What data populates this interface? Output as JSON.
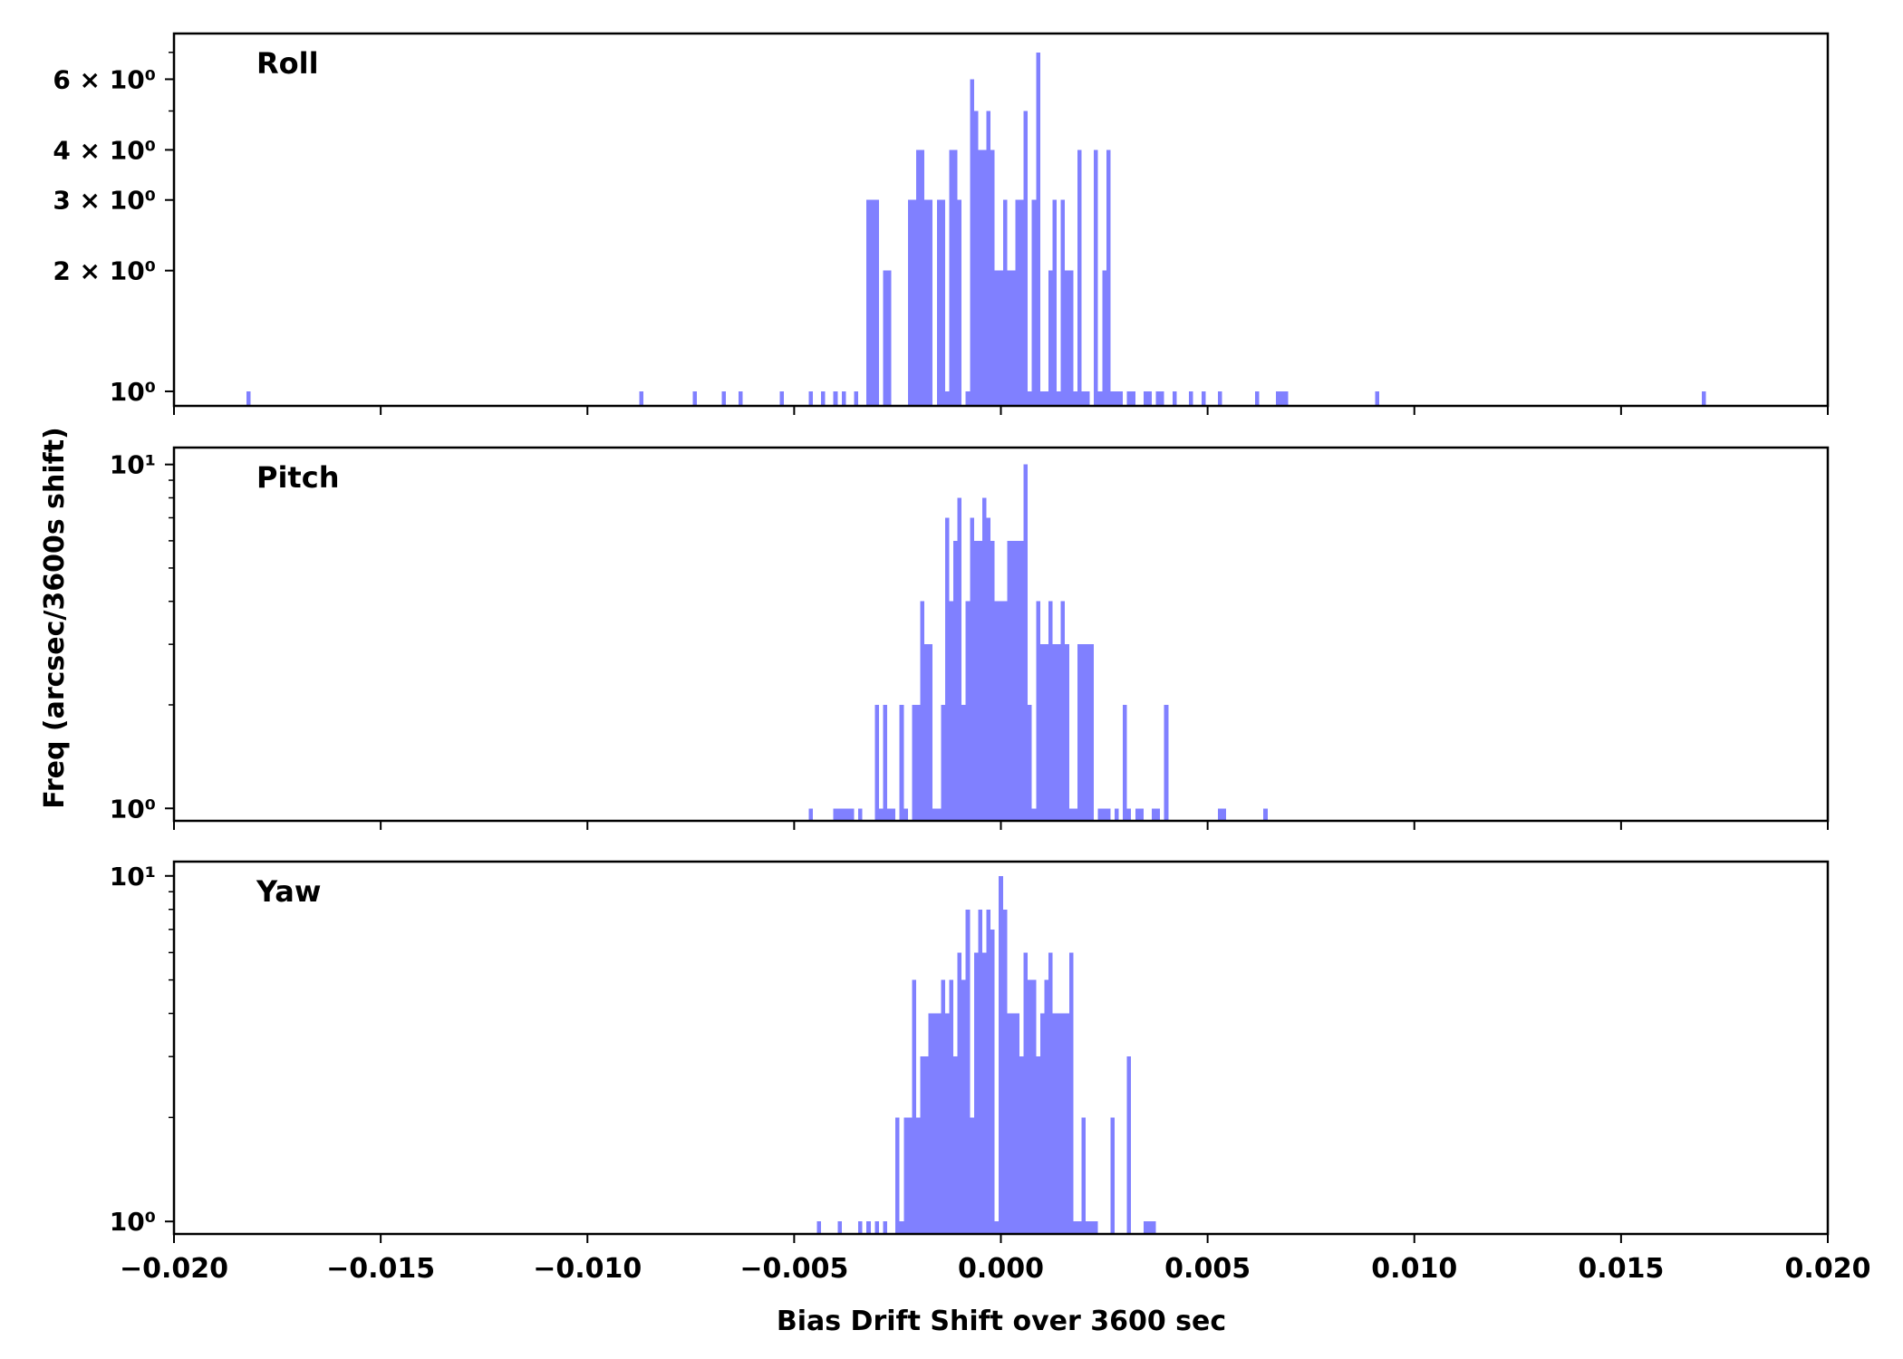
{
  "chart_data": [
    {
      "type": "bar",
      "title": "Roll",
      "xlim": [
        -0.02,
        0.02
      ],
      "y_scale": "log",
      "bar_color": "#8080ff",
      "y_ticks": [
        {
          "value": 1,
          "label": "10⁰"
        },
        {
          "value": 2,
          "label": "2 × 10⁰"
        },
        {
          "value": 3,
          "label": "3 × 10⁰"
        },
        {
          "value": 4,
          "label": "4 × 10⁰"
        },
        {
          "value": 6,
          "label": "6 × 10⁰"
        }
      ],
      "x_tick_labels_shown": false,
      "bins": [
        [
          -0.0182,
          1
        ],
        [
          -0.0087,
          1
        ],
        [
          -0.0074,
          1
        ],
        [
          -0.0067,
          1
        ],
        [
          -0.0063,
          1
        ],
        [
          -0.0053,
          1
        ],
        [
          -0.0046,
          1
        ],
        [
          -0.0043,
          1
        ],
        [
          -0.004,
          1
        ],
        [
          -0.0038,
          1
        ],
        [
          -0.0035,
          1
        ],
        [
          -0.0032,
          3
        ],
        [
          -0.0031,
          3
        ],
        [
          -0.003,
          3
        ],
        [
          -0.0028,
          2
        ],
        [
          -0.0027,
          2
        ],
        [
          -0.0022,
          3
        ],
        [
          -0.0021,
          3
        ],
        [
          -0.002,
          4
        ],
        [
          -0.0019,
          4
        ],
        [
          -0.0018,
          3
        ],
        [
          -0.0017,
          3
        ],
        [
          -0.0015,
          3
        ],
        [
          -0.0014,
          3
        ],
        [
          -0.0013,
          1
        ],
        [
          -0.0012,
          4
        ],
        [
          -0.0011,
          4
        ],
        [
          -0.001,
          3
        ],
        [
          -0.0008,
          1
        ],
        [
          -0.0007,
          6
        ],
        [
          -0.0006,
          5
        ],
        [
          -0.0005,
          4
        ],
        [
          -0.0004,
          4
        ],
        [
          -0.0003,
          5
        ],
        [
          -0.0002,
          4
        ],
        [
          -0.0001,
          2
        ],
        [
          0.0,
          2
        ],
        [
          0.0001,
          3
        ],
        [
          0.0002,
          2
        ],
        [
          0.0003,
          2
        ],
        [
          0.0004,
          3
        ],
        [
          0.0005,
          3
        ],
        [
          0.0006,
          5
        ],
        [
          0.0007,
          1
        ],
        [
          0.0008,
          3
        ],
        [
          0.0009,
          7
        ],
        [
          0.001,
          1
        ],
        [
          0.0011,
          1
        ],
        [
          0.0012,
          2
        ],
        [
          0.0013,
          3
        ],
        [
          0.0014,
          1
        ],
        [
          0.0015,
          3
        ],
        [
          0.0016,
          2
        ],
        [
          0.0017,
          2
        ],
        [
          0.0018,
          1
        ],
        [
          0.0019,
          4
        ],
        [
          0.002,
          1
        ],
        [
          0.0021,
          1
        ],
        [
          0.0023,
          4
        ],
        [
          0.0024,
          1
        ],
        [
          0.0025,
          2
        ],
        [
          0.0026,
          4
        ],
        [
          0.0027,
          1
        ],
        [
          0.0028,
          1
        ],
        [
          0.0029,
          1
        ],
        [
          0.0031,
          1
        ],
        [
          0.0032,
          1
        ],
        [
          0.0035,
          1
        ],
        [
          0.0036,
          1
        ],
        [
          0.0038,
          1
        ],
        [
          0.0039,
          1
        ],
        [
          0.0042,
          1
        ],
        [
          0.0046,
          1
        ],
        [
          0.0049,
          1
        ],
        [
          0.0053,
          1
        ],
        [
          0.0062,
          1
        ],
        [
          0.0067,
          1
        ],
        [
          0.0068,
          1
        ],
        [
          0.0069,
          1
        ],
        [
          0.0091,
          1
        ],
        [
          0.017,
          1
        ]
      ]
    },
    {
      "type": "bar",
      "title": "Pitch",
      "xlim": [
        -0.02,
        0.02
      ],
      "y_scale": "log",
      "bar_color": "#8080ff",
      "y_ticks": [
        {
          "value": 1,
          "label": "10⁰"
        },
        {
          "value": 10,
          "label": "10¹"
        }
      ],
      "x_tick_labels_shown": false,
      "bins": [
        [
          -0.0046,
          1
        ],
        [
          -0.004,
          1
        ],
        [
          -0.0039,
          1
        ],
        [
          -0.0038,
          1
        ],
        [
          -0.0037,
          1
        ],
        [
          -0.0036,
          1
        ],
        [
          -0.0034,
          1
        ],
        [
          -0.003,
          2
        ],
        [
          -0.0029,
          1
        ],
        [
          -0.0028,
          2
        ],
        [
          -0.0027,
          1
        ],
        [
          -0.0026,
          1
        ],
        [
          -0.0024,
          2
        ],
        [
          -0.0023,
          1
        ],
        [
          -0.0021,
          2
        ],
        [
          -0.002,
          2
        ],
        [
          -0.0019,
          4
        ],
        [
          -0.0018,
          3
        ],
        [
          -0.0017,
          3
        ],
        [
          -0.0016,
          1
        ],
        [
          -0.0015,
          1
        ],
        [
          -0.0014,
          2
        ],
        [
          -0.0013,
          7
        ],
        [
          -0.0012,
          4
        ],
        [
          -0.0011,
          6
        ],
        [
          -0.001,
          8
        ],
        [
          -0.0009,
          2
        ],
        [
          -0.0008,
          4
        ],
        [
          -0.0007,
          7
        ],
        [
          -0.0006,
          6
        ],
        [
          -0.0005,
          6
        ],
        [
          -0.0004,
          8
        ],
        [
          -0.0003,
          7
        ],
        [
          -0.0002,
          6
        ],
        [
          -0.0001,
          4
        ],
        [
          0.0,
          4
        ],
        [
          0.0001,
          4
        ],
        [
          0.0002,
          6
        ],
        [
          0.0003,
          6
        ],
        [
          0.0004,
          6
        ],
        [
          0.0005,
          6
        ],
        [
          0.0006,
          10
        ],
        [
          0.0007,
          2
        ],
        [
          0.0008,
          1
        ],
        [
          0.0009,
          4
        ],
        [
          0.001,
          3
        ],
        [
          0.0011,
          3
        ],
        [
          0.0012,
          4
        ],
        [
          0.0013,
          3
        ],
        [
          0.0014,
          3
        ],
        [
          0.0015,
          4
        ],
        [
          0.0016,
          3
        ],
        [
          0.0017,
          1
        ],
        [
          0.0018,
          1
        ],
        [
          0.0019,
          3
        ],
        [
          0.002,
          3
        ],
        [
          0.0021,
          3
        ],
        [
          0.0022,
          3
        ],
        [
          0.0024,
          1
        ],
        [
          0.0025,
          1
        ],
        [
          0.0026,
          1
        ],
        [
          0.0028,
          1
        ],
        [
          0.003,
          2
        ],
        [
          0.0031,
          1
        ],
        [
          0.0033,
          1
        ],
        [
          0.0034,
          1
        ],
        [
          0.0037,
          1
        ],
        [
          0.0038,
          1
        ],
        [
          0.004,
          2
        ],
        [
          0.0053,
          1
        ],
        [
          0.0054,
          1
        ],
        [
          0.0064,
          1
        ]
      ]
    },
    {
      "type": "bar",
      "title": "Yaw",
      "xlim": [
        -0.02,
        0.02
      ],
      "y_scale": "log",
      "bar_color": "#8080ff",
      "y_ticks": [
        {
          "value": 1,
          "label": "10⁰"
        },
        {
          "value": 10,
          "label": "10¹"
        }
      ],
      "x_ticks": [
        -0.02,
        -0.015,
        -0.01,
        -0.005,
        0.0,
        0.005,
        0.01,
        0.015,
        0.02
      ],
      "x_tick_labels": [
        "−0.020",
        "−0.015",
        "−0.010",
        "−0.005",
        "0.000",
        "0.005",
        "0.010",
        "0.015",
        "0.020"
      ],
      "x_tick_labels_shown": true,
      "bins": [
        [
          -0.0044,
          1
        ],
        [
          -0.0039,
          1
        ],
        [
          -0.0034,
          1
        ],
        [
          -0.0032,
          1
        ],
        [
          -0.003,
          1
        ],
        [
          -0.0028,
          1
        ],
        [
          -0.0025,
          2
        ],
        [
          -0.0024,
          1
        ],
        [
          -0.0023,
          2
        ],
        [
          -0.0022,
          2
        ],
        [
          -0.0021,
          5
        ],
        [
          -0.002,
          2
        ],
        [
          -0.0019,
          3
        ],
        [
          -0.0018,
          3
        ],
        [
          -0.0017,
          4
        ],
        [
          -0.0016,
          4
        ],
        [
          -0.0015,
          4
        ],
        [
          -0.0014,
          5
        ],
        [
          -0.0013,
          4
        ],
        [
          -0.0012,
          5
        ],
        [
          -0.0011,
          3
        ],
        [
          -0.001,
          6
        ],
        [
          -0.0009,
          5
        ],
        [
          -0.0008,
          8
        ],
        [
          -0.0007,
          2
        ],
        [
          -0.0006,
          6
        ],
        [
          -0.0005,
          8
        ],
        [
          -0.0004,
          6
        ],
        [
          -0.0003,
          8
        ],
        [
          -0.0002,
          7
        ],
        [
          -0.0001,
          1
        ],
        [
          0.0,
          10
        ],
        [
          0.0001,
          8
        ],
        [
          0.0002,
          4
        ],
        [
          0.0003,
          4
        ],
        [
          0.0004,
          4
        ],
        [
          0.0005,
          3
        ],
        [
          0.0006,
          6
        ],
        [
          0.0007,
          5
        ],
        [
          0.0008,
          5
        ],
        [
          0.0009,
          3
        ],
        [
          0.001,
          4
        ],
        [
          0.0011,
          5
        ],
        [
          0.0012,
          6
        ],
        [
          0.0013,
          4
        ],
        [
          0.0014,
          4
        ],
        [
          0.0015,
          4
        ],
        [
          0.0016,
          4
        ],
        [
          0.0017,
          6
        ],
        [
          0.0018,
          1
        ],
        [
          0.0019,
          1
        ],
        [
          0.002,
          2
        ],
        [
          0.0021,
          1
        ],
        [
          0.0022,
          1
        ],
        [
          0.0023,
          1
        ],
        [
          0.0027,
          2
        ],
        [
          0.0031,
          3
        ],
        [
          0.0035,
          1
        ],
        [
          0.0036,
          1
        ],
        [
          0.0037,
          1
        ]
      ]
    }
  ],
  "figure": {
    "shared_ylabel": "Freq (arcsec/3600s shift)",
    "shared_xlabel": "Bias Drift Shift over 3600 sec"
  }
}
